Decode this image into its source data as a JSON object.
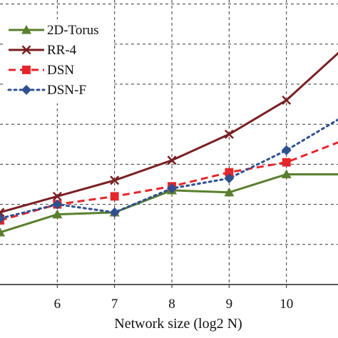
{
  "chart_data": {
    "type": "line",
    "title": "",
    "xlabel": "Network size (log2 N)",
    "ylabel": "",
    "x": [
      5,
      6,
      7,
      8,
      9,
      10,
      11
    ],
    "x_tick_labels": [
      "6",
      "7",
      "8",
      "9",
      "10"
    ],
    "xlim": [
      5.0,
      10.9
    ],
    "ylim": [
      0,
      7.1
    ],
    "grid": true,
    "legend_position": "top-left",
    "series": [
      {
        "name": "2D-Torus",
        "values": [
          1.3,
          1.75,
          1.8,
          2.35,
          2.3,
          2.75,
          2.75
        ],
        "color": "#5a7f2e",
        "marker": "triangle",
        "dash": "solid"
      },
      {
        "name": "RR-4",
        "values": [
          1.8,
          2.2,
          2.6,
          3.1,
          3.75,
          4.6,
          5.9
        ],
        "color": "#7a1f23",
        "marker": "x",
        "dash": "solid"
      },
      {
        "name": "DSN",
        "values": [
          1.6,
          2.0,
          2.2,
          2.45,
          2.8,
          3.05,
          3.6
        ],
        "color": "#e5262b",
        "marker": "square",
        "dash": "dashed"
      },
      {
        "name": "DSN-F",
        "values": [
          1.65,
          2.0,
          1.8,
          2.4,
          2.65,
          3.35,
          4.2
        ],
        "color": "#2f4f8f",
        "marker": "diamond",
        "dash": "dotted"
      }
    ]
  }
}
